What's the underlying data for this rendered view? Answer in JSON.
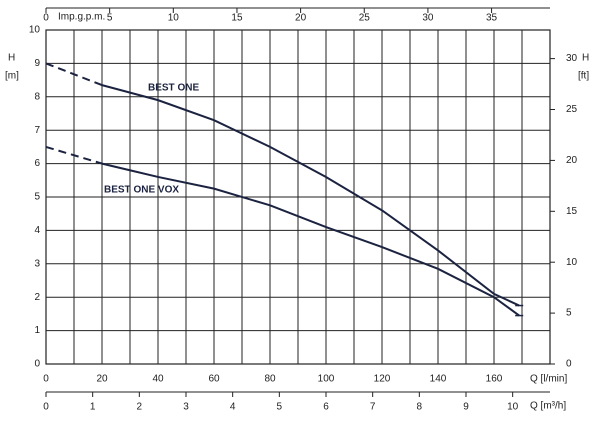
{
  "chart_data": {
    "type": "line",
    "y_label": "H",
    "y_unit": "[m]",
    "y2_label": "H",
    "y2_unit": "[ft]",
    "x_label": "Q [l/min]",
    "x2_label": "Q [m³/h]",
    "x_top_label": "Imp.g.p.m.",
    "xlim": [
      0,
      180
    ],
    "xticks": [
      0,
      20,
      40,
      60,
      80,
      100,
      120,
      140,
      160
    ],
    "x_minor_ticks": [
      10,
      30,
      50,
      70,
      90,
      110,
      130,
      150,
      170
    ],
    "ylim": [
      0,
      10
    ],
    "yticks": [
      0,
      1,
      2,
      3,
      4,
      5,
      6,
      7,
      8,
      9,
      10
    ],
    "y2lim": [
      0,
      32.81
    ],
    "y2ticks": [
      0,
      5,
      10,
      15,
      20,
      25,
      30
    ],
    "x_top_lim": [
      0,
      39.59
    ],
    "x_top_ticks": [
      0,
      5,
      10,
      15,
      20,
      25,
      30,
      35
    ],
    "x_bottom2_lim": [
      0,
      10.8
    ],
    "x_bottom2_ticks": [
      0,
      1,
      2,
      3,
      4,
      5,
      6,
      7,
      8,
      9,
      10
    ],
    "grid": true,
    "series": [
      {
        "name": "BEST ONE",
        "color": "#1c2340",
        "line_style": "solid",
        "x": [
          20,
          40,
          60,
          80,
          100,
          120,
          140,
          160,
          169
        ],
        "values": [
          8.35,
          7.9,
          7.3,
          6.5,
          5.6,
          4.6,
          3.4,
          2.1,
          1.75
        ]
      },
      {
        "color": "#1c2340",
        "line_style": "dashed",
        "x": [
          0,
          20
        ],
        "values": [
          9,
          8.35
        ]
      },
      {
        "name": "BEST ONE VOX",
        "color": "#1c2340",
        "line_style": "solid",
        "x": [
          20,
          40,
          60,
          80,
          100,
          120,
          140,
          160,
          169
        ],
        "values": [
          6.0,
          5.6,
          5.25,
          4.75,
          4.1,
          3.5,
          2.85,
          2.0,
          1.45
        ]
      },
      {
        "color": "#1c2340",
        "line_style": "dashed",
        "x": [
          0,
          20
        ],
        "values": [
          6.5,
          6.0
        ]
      }
    ]
  }
}
